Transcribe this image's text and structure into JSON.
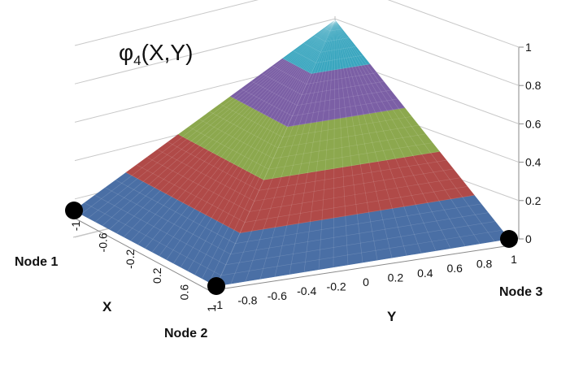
{
  "chart_data": {
    "type": "surface",
    "title_prefix": "φ",
    "title_sub": "4",
    "title_suffix": "(X,Y)",
    "xlabel": "X",
    "ylabel": "Y",
    "x_ticks": [
      "-1",
      "-0.6",
      "-0.2",
      "0.2",
      "0.6",
      "1"
    ],
    "y_ticks": [
      "-1",
      "-0.8",
      "-0.6",
      "-0.4",
      "-0.2",
      "0",
      "0.2",
      "0.4",
      "0.6",
      "0.8",
      "1"
    ],
    "z_ticks": [
      "0",
      "0.2",
      "0.4",
      "0.6",
      "0.8",
      "1"
    ],
    "zlim": [
      0,
      1
    ],
    "bands": [
      {
        "from": 0.0,
        "to": 0.2,
        "color": "#4a6fa5"
      },
      {
        "from": 0.2,
        "to": 0.4,
        "color": "#b04a48"
      },
      {
        "from": 0.4,
        "to": 0.6,
        "color": "#8ca84e"
      },
      {
        "from": 0.6,
        "to": 0.8,
        "color": "#7b5fa5"
      },
      {
        "from": 0.8,
        "to": 1.0,
        "color": "#3aa6bf"
      }
    ],
    "nodes": [
      {
        "label": "Node 1"
      },
      {
        "label": "Node 2"
      },
      {
        "label": "Node 3"
      }
    ]
  }
}
